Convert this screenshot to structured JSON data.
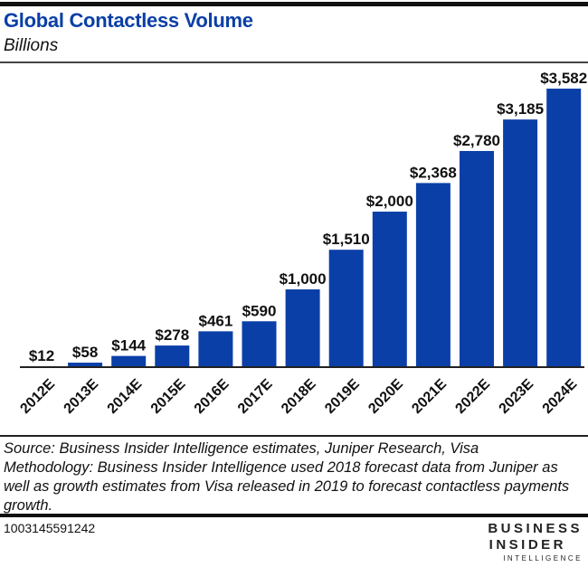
{
  "header": {
    "title": "Global Contactless Volume",
    "subtitle": "Billions"
  },
  "chart_data": {
    "type": "bar",
    "title": "Global Contactless Volume",
    "subtitle": "Billions",
    "xlabel": "",
    "ylabel": "Billions",
    "categories": [
      "2012E",
      "2013E",
      "2014E",
      "2015E",
      "2016E",
      "2017E",
      "2018E",
      "2019E",
      "2020E",
      "2021E",
      "2022E",
      "2023E",
      "2024E"
    ],
    "values": [
      12,
      58,
      144,
      278,
      461,
      590,
      1000,
      1510,
      2000,
      2368,
      2780,
      3185,
      3582
    ],
    "data_labels": [
      "$12",
      "$58",
      "$144",
      "$278",
      "$461",
      "$590",
      "$1,000",
      "$1,510",
      "$2,000",
      "$2,368",
      "$2,780",
      "$3,185",
      "$3,582"
    ],
    "ylim": [
      0,
      3582
    ],
    "grid": false,
    "legend": "none",
    "bar_color": "#0b3fa8"
  },
  "footer": {
    "source": "Source: Business Insider Intelligence estimates, Juniper Research, Visa",
    "methodology": "Methodology: Business Insider Intelligence used 2018 forecast data from Juniper as well as growth estimates from Visa released in 2019 to forecast contactless payments growth.",
    "chart_id": "1003145591242",
    "logo_line1": "BUSINESS",
    "logo_line2": "INSIDER",
    "logo_line3": "INTELLIGENCE"
  }
}
